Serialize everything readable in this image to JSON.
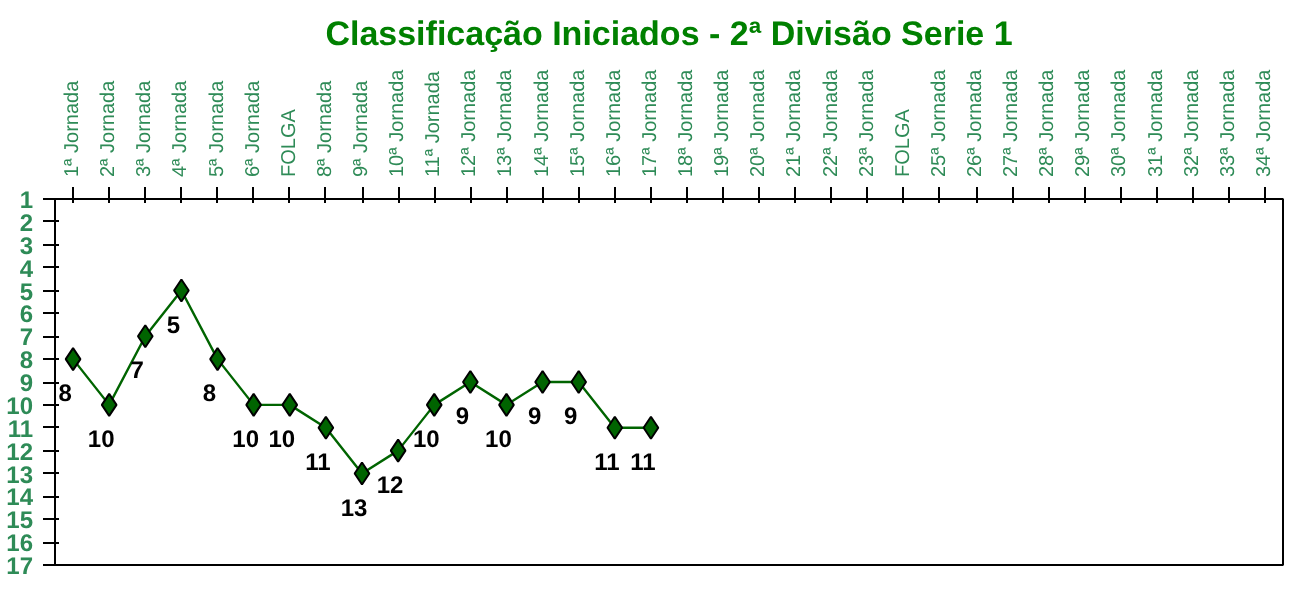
{
  "chart_data": {
    "type": "line",
    "title": "Classificação Iniciados - 2ª Divisão Serie 1",
    "categories": [
      "1ª Jornada",
      "2ª Jornada",
      "3ª Jornada",
      "4ª Jornada",
      "5ª Jornada",
      "6ª Jornada",
      "FOLGA",
      "8ª Jornada",
      "9ª Jornada",
      "10ª Jornada",
      "11ª Jornada",
      "12ª Jornada",
      "13ª Jornada",
      "14ª Jornada",
      "15ª Jornada",
      "16ª Jornada",
      "17ª Jornada",
      "18ª Jornada",
      "19ª Jornada",
      "20ª Jornada",
      "21ª Jornada",
      "22ª Jornada",
      "23ª Jornada",
      "FOLGA",
      "25ª Jornada",
      "26ª Jornada",
      "27ª Jornada",
      "28ª Jornada",
      "29ª Jornada",
      "30ª Jornada",
      "31ª Jornada",
      "32ª Jornada",
      "33ª Jornada",
      "34ª Jornada"
    ],
    "series": [
      {
        "color": "#006400",
        "values": [
          8,
          10,
          7,
          5,
          8,
          10,
          10,
          11,
          13,
          12,
          10,
          9,
          10,
          9,
          9,
          11,
          11,
          null,
          null,
          null,
          null,
          null,
          null,
          null,
          null,
          null,
          null,
          null,
          null,
          null,
          null,
          null,
          null,
          null
        ]
      }
    ],
    "ylim": [
      17,
      1
    ],
    "yticks": [
      1,
      2,
      3,
      4,
      5,
      6,
      7,
      8,
      9,
      10,
      11,
      12,
      13,
      14,
      15,
      16,
      17
    ],
    "marker": "diamond",
    "data_labels": true
  }
}
